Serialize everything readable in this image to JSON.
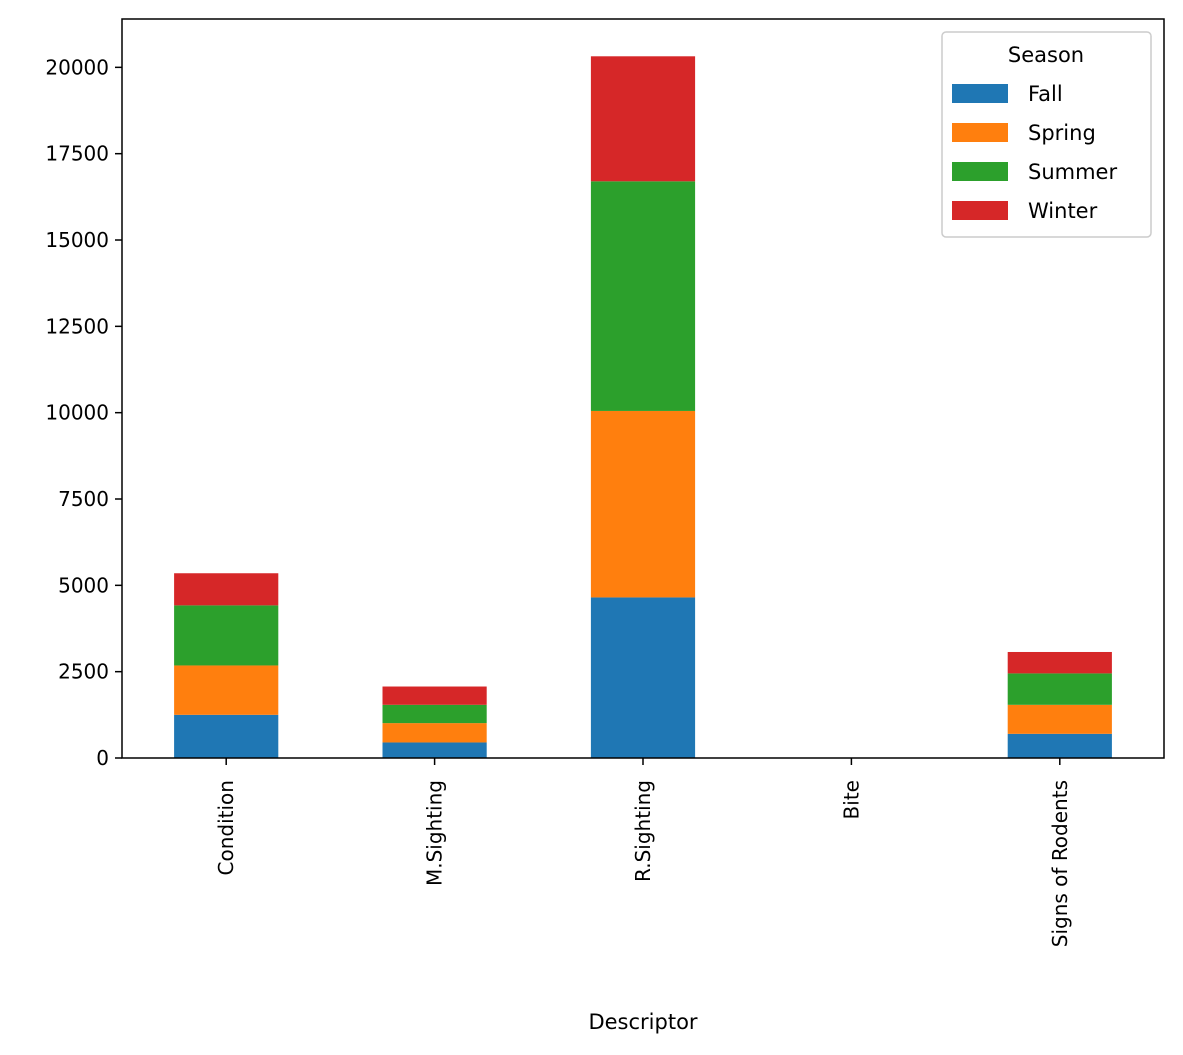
{
  "chart_data": {
    "type": "bar",
    "stacked": true,
    "categories": [
      "Condition",
      "M.Sighting",
      "R.Sighting",
      "Bite",
      "Signs of Rodents"
    ],
    "series": [
      {
        "name": "Fall",
        "color": "#1f77b4",
        "values": [
          1250,
          450,
          4650,
          0,
          700
        ]
      },
      {
        "name": "Spring",
        "color": "#ff7f0e",
        "values": [
          1430,
          560,
          5400,
          0,
          840
        ]
      },
      {
        "name": "Summer",
        "color": "#2ca02c",
        "values": [
          1740,
          530,
          6650,
          0,
          910
        ]
      },
      {
        "name": "Winter",
        "color": "#d62728",
        "values": [
          930,
          530,
          3620,
          0,
          620
        ]
      }
    ],
    "xlabel": "Descriptor",
    "ylabel": "",
    "ylim": [
      0,
      21400
    ],
    "yticks": [
      0,
      2500,
      5000,
      7500,
      10000,
      12500,
      15000,
      17500,
      20000
    ],
    "grid": false,
    "legend": {
      "title": "Season",
      "position": "top-right"
    }
  }
}
